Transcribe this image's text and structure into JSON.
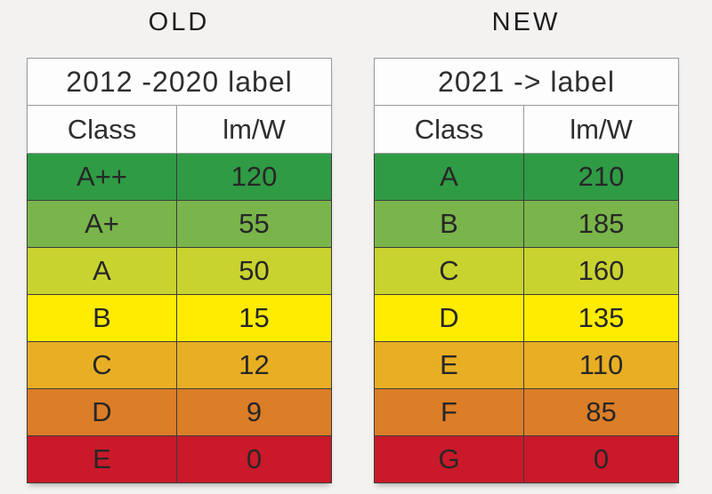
{
  "page": {
    "background": "#f4f2f0",
    "table_background": "#fdfdfd",
    "header_border_color": "#9a9a9a",
    "row_border_color": "#3c3c3c",
    "text_color": "#272727"
  },
  "row_colors": [
    "#2f9b45",
    "#79b54a",
    "#c9d32f",
    "#ffec00",
    "#e8ae24",
    "#dc7d27",
    "#c9192a"
  ],
  "chart_data": [
    {
      "type": "table",
      "title": "OLD",
      "header": "2012 -2020 label",
      "columns": [
        "Class",
        "lm/W"
      ],
      "rows": [
        [
          "A++",
          120
        ],
        [
          "A+",
          55
        ],
        [
          "A",
          50
        ],
        [
          "B",
          15
        ],
        [
          "C",
          12
        ],
        [
          "D",
          9
        ],
        [
          "E",
          0
        ]
      ]
    },
    {
      "type": "table",
      "title": "NEW",
      "header": "2021 -> label",
      "columns": [
        "Class",
        "lm/W"
      ],
      "rows": [
        [
          "A",
          210
        ],
        [
          "B",
          185
        ],
        [
          "C",
          160
        ],
        [
          "D",
          135
        ],
        [
          "E",
          110
        ],
        [
          "F",
          85
        ],
        [
          "G",
          0
        ]
      ]
    }
  ]
}
